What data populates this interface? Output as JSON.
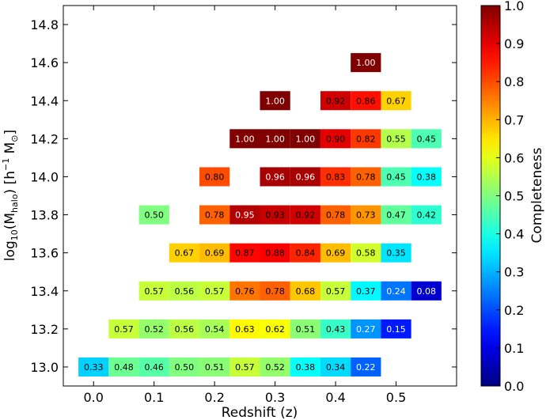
{
  "chart_data": {
    "type": "heatmap",
    "xlabel": "Redshift (z)",
    "ylabel": "log10(Mhalo) [h−1 M⊙]",
    "ylabel_parts": {
      "pre": "log",
      "sub10": "10",
      "open": "(M",
      "sub_halo": "halo",
      "mid": ") [h",
      "sup": "−1",
      "mid2": " M",
      "sun": "⊙",
      "close": "]"
    },
    "colorbar_label": "Completeness",
    "colormap": "jet",
    "xlim": [
      -0.05,
      0.6
    ],
    "ylim": [
      12.9,
      14.9
    ],
    "x_ticks": [
      {
        "value": 0.0,
        "label": "0.0"
      },
      {
        "value": 0.1,
        "label": "0.1"
      },
      {
        "value": 0.2,
        "label": "0.2"
      },
      {
        "value": 0.3,
        "label": "0.3"
      },
      {
        "value": 0.4,
        "label": "0.4"
      },
      {
        "value": 0.5,
        "label": "0.5"
      }
    ],
    "y_ticks": [
      {
        "value": 13.0,
        "label": "13.0"
      },
      {
        "value": 13.2,
        "label": "13.2"
      },
      {
        "value": 13.4,
        "label": "13.4"
      },
      {
        "value": 13.6,
        "label": "13.6"
      },
      {
        "value": 13.8,
        "label": "13.8"
      },
      {
        "value": 14.0,
        "label": "14.0"
      },
      {
        "value": 14.2,
        "label": "14.2"
      },
      {
        "value": 14.4,
        "label": "14.4"
      },
      {
        "value": 14.6,
        "label": "14.6"
      },
      {
        "value": 14.8,
        "label": "14.8"
      }
    ],
    "colorbar_range": [
      0.0,
      1.0
    ],
    "colorbar_ticks": [
      "0.0",
      "0.1",
      "0.2",
      "0.3",
      "0.4",
      "0.5",
      "0.6",
      "0.7",
      "0.8",
      "0.9",
      "1.0"
    ],
    "cell_width": 0.05,
    "cell_height": 0.1,
    "cells": [
      {
        "x": 0.0,
        "y": 13.0,
        "value": 0.33,
        "label": "0.33"
      },
      {
        "x": 0.05,
        "y": 13.0,
        "value": 0.48,
        "label": "0.48"
      },
      {
        "x": 0.1,
        "y": 13.0,
        "value": 0.46,
        "label": "0.46"
      },
      {
        "x": 0.15,
        "y": 13.0,
        "value": 0.5,
        "label": "0.50"
      },
      {
        "x": 0.2,
        "y": 13.0,
        "value": 0.51,
        "label": "0.51"
      },
      {
        "x": 0.25,
        "y": 13.0,
        "value": 0.57,
        "label": "0.57"
      },
      {
        "x": 0.3,
        "y": 13.0,
        "value": 0.52,
        "label": "0.52"
      },
      {
        "x": 0.35,
        "y": 13.0,
        "value": 0.38,
        "label": "0.38"
      },
      {
        "x": 0.4,
        "y": 13.0,
        "value": 0.34,
        "label": "0.34"
      },
      {
        "x": 0.45,
        "y": 13.0,
        "value": 0.22,
        "label": "0.22"
      },
      {
        "x": 0.05,
        "y": 13.2,
        "value": 0.57,
        "label": "0.57"
      },
      {
        "x": 0.1,
        "y": 13.2,
        "value": 0.52,
        "label": "0.52"
      },
      {
        "x": 0.15,
        "y": 13.2,
        "value": 0.56,
        "label": "0.56"
      },
      {
        "x": 0.2,
        "y": 13.2,
        "value": 0.54,
        "label": "0.54"
      },
      {
        "x": 0.25,
        "y": 13.2,
        "value": 0.63,
        "label": "0.63"
      },
      {
        "x": 0.3,
        "y": 13.2,
        "value": 0.62,
        "label": "0.62"
      },
      {
        "x": 0.35,
        "y": 13.2,
        "value": 0.51,
        "label": "0.51"
      },
      {
        "x": 0.4,
        "y": 13.2,
        "value": 0.43,
        "label": "0.43"
      },
      {
        "x": 0.45,
        "y": 13.2,
        "value": 0.27,
        "label": "0.27"
      },
      {
        "x": 0.5,
        "y": 13.2,
        "value": 0.15,
        "label": "0.15"
      },
      {
        "x": 0.1,
        "y": 13.4,
        "value": 0.57,
        "label": "0.57"
      },
      {
        "x": 0.15,
        "y": 13.4,
        "value": 0.56,
        "label": "0.56"
      },
      {
        "x": 0.2,
        "y": 13.4,
        "value": 0.57,
        "label": "0.57"
      },
      {
        "x": 0.25,
        "y": 13.4,
        "value": 0.76,
        "label": "0.76"
      },
      {
        "x": 0.3,
        "y": 13.4,
        "value": 0.78,
        "label": "0.78"
      },
      {
        "x": 0.35,
        "y": 13.4,
        "value": 0.68,
        "label": "0.68"
      },
      {
        "x": 0.4,
        "y": 13.4,
        "value": 0.57,
        "label": "0.57"
      },
      {
        "x": 0.45,
        "y": 13.4,
        "value": 0.37,
        "label": "0.37"
      },
      {
        "x": 0.5,
        "y": 13.4,
        "value": 0.24,
        "label": "0.24"
      },
      {
        "x": 0.55,
        "y": 13.4,
        "value": 0.08,
        "label": "0.08"
      },
      {
        "x": 0.15,
        "y": 13.6,
        "value": 0.67,
        "label": "0.67"
      },
      {
        "x": 0.2,
        "y": 13.6,
        "value": 0.69,
        "label": "0.69"
      },
      {
        "x": 0.25,
        "y": 13.6,
        "value": 0.87,
        "label": "0.87"
      },
      {
        "x": 0.3,
        "y": 13.6,
        "value": 0.88,
        "label": "0.88"
      },
      {
        "x": 0.35,
        "y": 13.6,
        "value": 0.84,
        "label": "0.84"
      },
      {
        "x": 0.4,
        "y": 13.6,
        "value": 0.69,
        "label": "0.69"
      },
      {
        "x": 0.45,
        "y": 13.6,
        "value": 0.58,
        "label": "0.58"
      },
      {
        "x": 0.5,
        "y": 13.6,
        "value": 0.35,
        "label": "0.35"
      },
      {
        "x": 0.1,
        "y": 13.8,
        "value": 0.5,
        "label": "0.50"
      },
      {
        "x": 0.2,
        "y": 13.8,
        "value": 0.78,
        "label": "0.78"
      },
      {
        "x": 0.25,
        "y": 13.8,
        "value": 0.95,
        "label": "0.95"
      },
      {
        "x": 0.3,
        "y": 13.8,
        "value": 0.93,
        "label": "0.93"
      },
      {
        "x": 0.35,
        "y": 13.8,
        "value": 0.92,
        "label": "0.92"
      },
      {
        "x": 0.4,
        "y": 13.8,
        "value": 0.78,
        "label": "0.78"
      },
      {
        "x": 0.45,
        "y": 13.8,
        "value": 0.73,
        "label": "0.73"
      },
      {
        "x": 0.5,
        "y": 13.8,
        "value": 0.47,
        "label": "0.47"
      },
      {
        "x": 0.55,
        "y": 13.8,
        "value": 0.42,
        "label": "0.42"
      },
      {
        "x": 0.2,
        "y": 14.0,
        "value": 0.8,
        "label": "0.80"
      },
      {
        "x": 0.3,
        "y": 14.0,
        "value": 0.96,
        "label": "0.96"
      },
      {
        "x": 0.35,
        "y": 14.0,
        "value": 0.96,
        "label": "0.96"
      },
      {
        "x": 0.4,
        "y": 14.0,
        "value": 0.83,
        "label": "0.83"
      },
      {
        "x": 0.45,
        "y": 14.0,
        "value": 0.78,
        "label": "0.78"
      },
      {
        "x": 0.5,
        "y": 14.0,
        "value": 0.45,
        "label": "0.45"
      },
      {
        "x": 0.55,
        "y": 14.0,
        "value": 0.38,
        "label": "0.38"
      },
      {
        "x": 0.25,
        "y": 14.2,
        "value": 1.0,
        "label": "1.00"
      },
      {
        "x": 0.3,
        "y": 14.2,
        "value": 1.0,
        "label": "1.00"
      },
      {
        "x": 0.35,
        "y": 14.2,
        "value": 1.0,
        "label": "1.00"
      },
      {
        "x": 0.4,
        "y": 14.2,
        "value": 0.9,
        "label": "0.90"
      },
      {
        "x": 0.45,
        "y": 14.2,
        "value": 0.82,
        "label": "0.82"
      },
      {
        "x": 0.5,
        "y": 14.2,
        "value": 0.55,
        "label": "0.55"
      },
      {
        "x": 0.55,
        "y": 14.2,
        "value": 0.45,
        "label": "0.45"
      },
      {
        "x": 0.3,
        "y": 14.4,
        "value": 1.0,
        "label": "1.00"
      },
      {
        "x": 0.4,
        "y": 14.4,
        "value": 0.92,
        "label": "0.92"
      },
      {
        "x": 0.45,
        "y": 14.4,
        "value": 0.86,
        "label": "0.86"
      },
      {
        "x": 0.5,
        "y": 14.4,
        "value": 0.67,
        "label": "0.67"
      },
      {
        "x": 0.45,
        "y": 14.6,
        "value": 1.0,
        "label": "1.00"
      }
    ]
  }
}
